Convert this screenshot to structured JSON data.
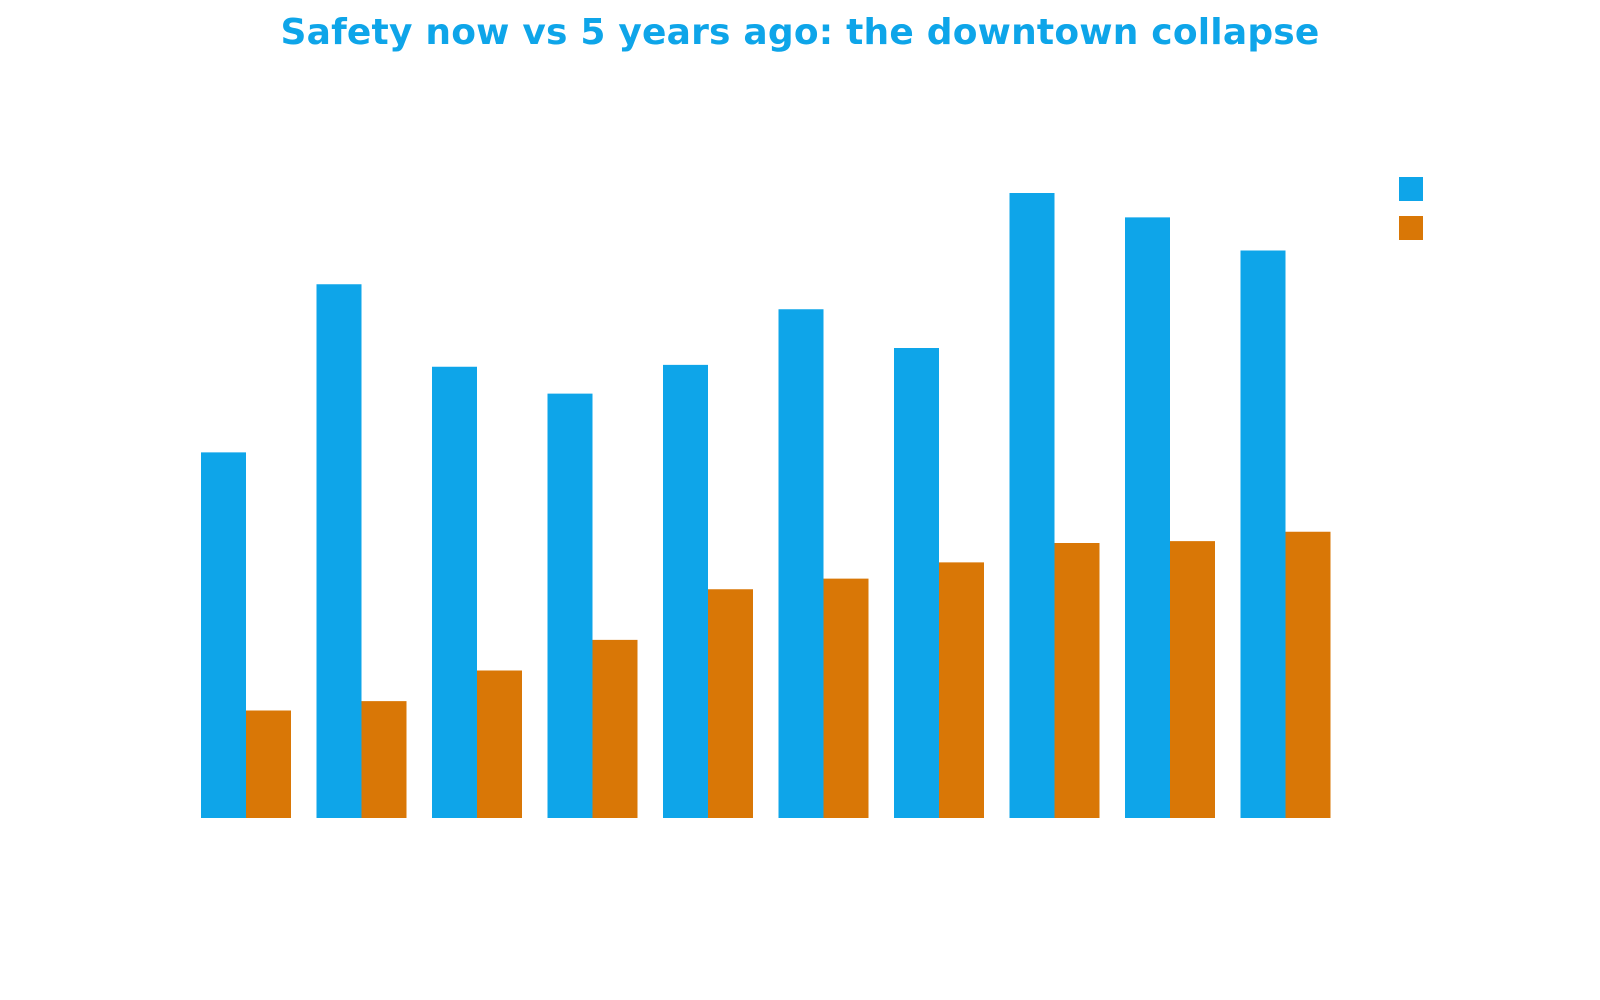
{
  "colors": {
    "title": "#0ea5e9",
    "series_now": "#0ea5e9",
    "series_past": "#d97706",
    "background": "#ffffff"
  },
  "chart_data": {
    "type": "bar",
    "title": "Safety now vs 5 years ago: the downtown collapse",
    "xlabel": "",
    "ylabel": "",
    "categories": [
      "",
      "",
      "",
      "",
      "",
      "",
      "",
      "",
      "",
      ""
    ],
    "series": [
      {
        "color": "#0ea5e9",
        "values": [
          5.85,
          8.54,
          7.22,
          6.79,
          7.25,
          8.14,
          7.52,
          10.0,
          9.61,
          9.08
        ]
      },
      {
        "color": "#d97706",
        "values": [
          1.72,
          1.87,
          2.36,
          2.85,
          3.66,
          3.83,
          4.09,
          4.4,
          4.43,
          4.58
        ]
      }
    ],
    "ylim": [
      0,
      10
    ],
    "grid": false,
    "axes_visible": false,
    "legend": "top-right"
  }
}
